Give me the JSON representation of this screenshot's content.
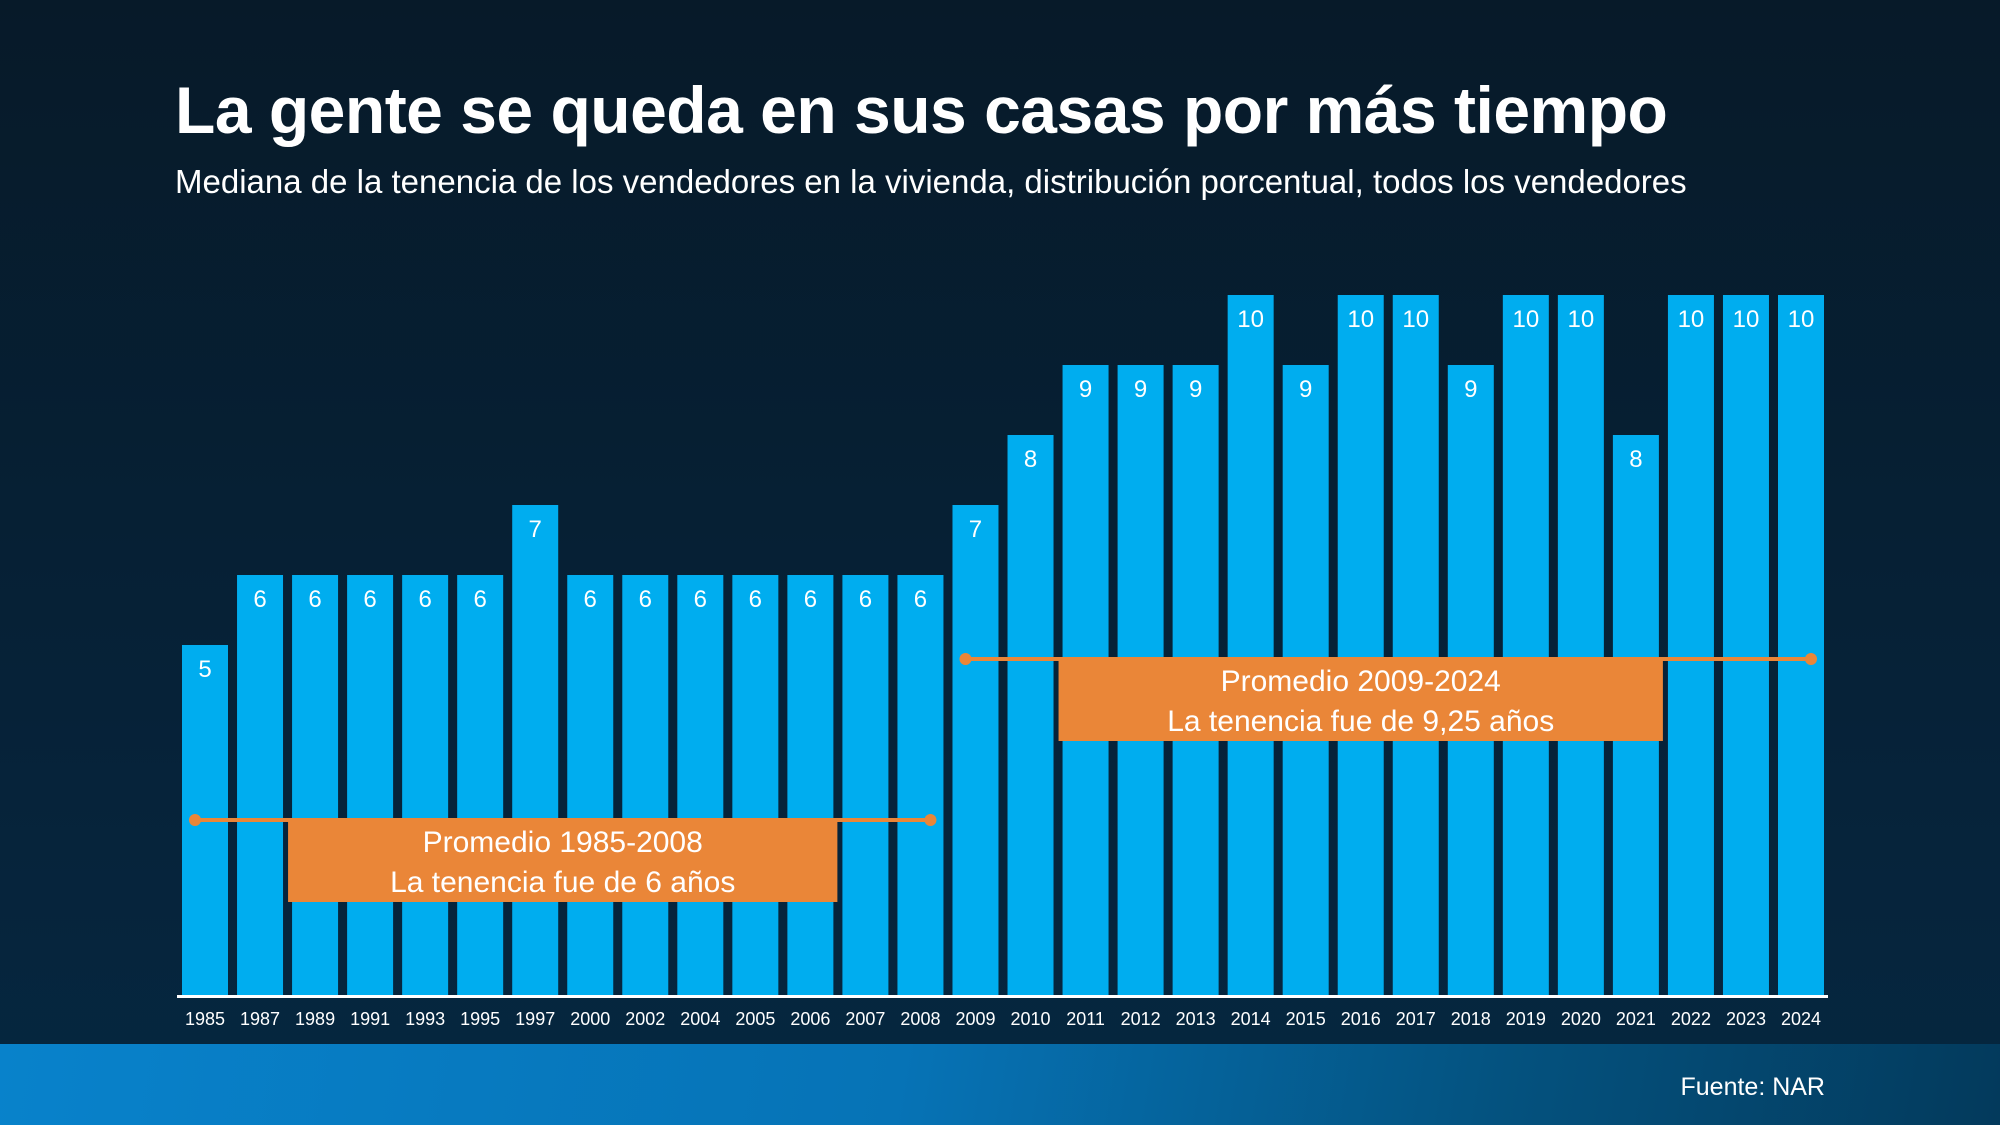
{
  "header": {
    "title": "La gente se queda en sus casas por más tiempo",
    "subtitle": "Mediana de la tenencia de los vendedores en la vivienda, distribución porcentual, todos los vendedores"
  },
  "footer": {
    "source": "Fuente: NAR"
  },
  "colors": {
    "bar": "#00adef",
    "annotation": "#ea8638",
    "axis": "#ffffff",
    "text": "#ffffff"
  },
  "chart_data": {
    "type": "bar",
    "title": "La gente se queda en sus casas por más tiempo",
    "subtitle": "Mediana de la tenencia de los vendedores en la vivienda, distribución porcentual, todos los vendedores",
    "xlabel": "",
    "ylabel": "",
    "ylim": [
      0,
      10
    ],
    "grid": false,
    "categories": [
      "1985",
      "1987",
      "1989",
      "1991",
      "1993",
      "1995",
      "1997",
      "2000",
      "2002",
      "2004",
      "2005",
      "2006",
      "2007",
      "2008",
      "2009",
      "2010",
      "2011",
      "2012",
      "2013",
      "2014",
      "2015",
      "2016",
      "2017",
      "2018",
      "2019",
      "2020",
      "2021",
      "2022",
      "2023",
      "2024"
    ],
    "values": [
      5,
      6,
      6,
      6,
      6,
      6,
      7,
      6,
      6,
      6,
      6,
      6,
      6,
      6,
      7,
      8,
      9,
      9,
      9,
      10,
      9,
      10,
      10,
      9,
      10,
      10,
      8,
      10,
      10,
      10
    ],
    "data_labels": true,
    "annotations": [
      {
        "label_line1": "Promedio 1985-2008",
        "label_line2": "La tenencia fue de 6 años",
        "from": "1985",
        "to": "2008",
        "value": 6,
        "line_level": 2.5,
        "box_from": "1989",
        "box_to": "2006"
      },
      {
        "label_line1": "Promedio 2009-2024",
        "label_line2": "La tenencia fue de 9,25 años",
        "from": "2009",
        "to": "2024",
        "value": 9.25,
        "line_level": 4.8,
        "box_from": "2011",
        "box_to": "2021"
      }
    ],
    "source": "Fuente: NAR"
  }
}
